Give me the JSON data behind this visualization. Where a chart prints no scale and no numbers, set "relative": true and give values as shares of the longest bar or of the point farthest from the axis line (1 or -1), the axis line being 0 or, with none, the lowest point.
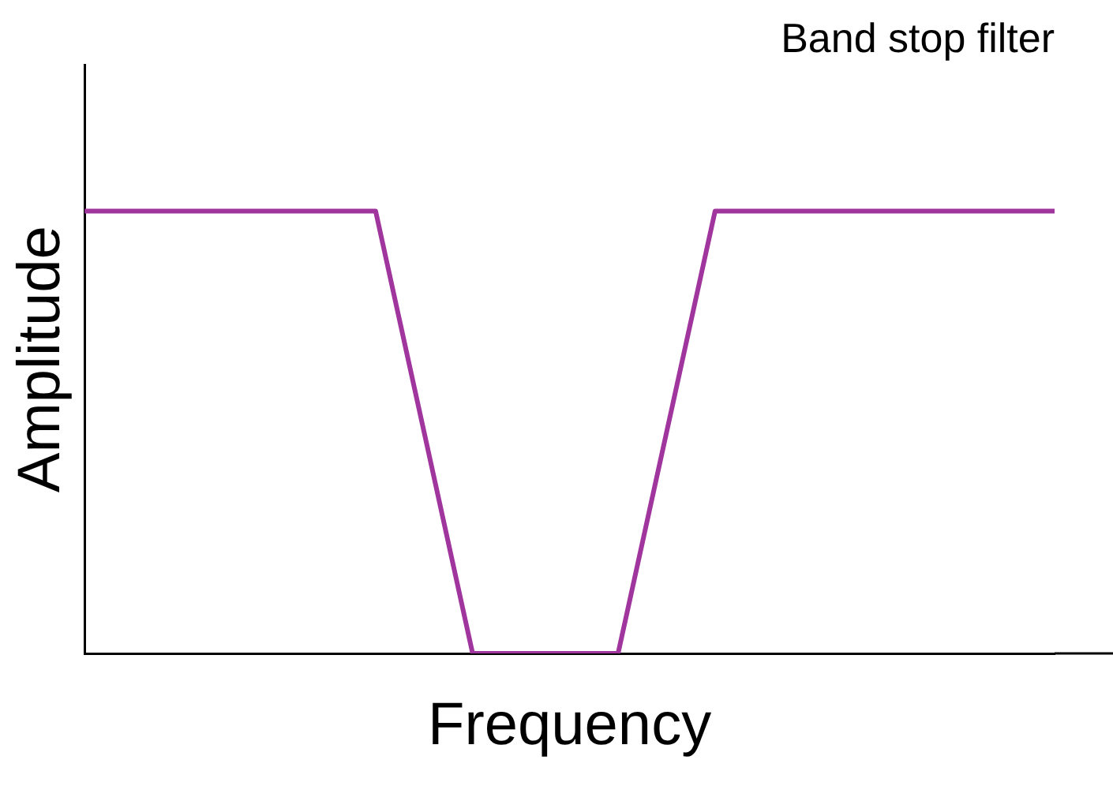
{
  "chart_data": {
    "type": "line",
    "title": "Band stop filter",
    "xlabel": "Frequency",
    "ylabel": "Amplitude",
    "relative": true,
    "categories": [
      null,
      null,
      null,
      null,
      null,
      null,
      null,
      null,
      null,
      null,
      null,
      null,
      null,
      null,
      null,
      null,
      null,
      null,
      null,
      null,
      null
    ],
    "series": [
      {
        "color": "#a0359e",
        "values": [
          1,
          1,
          1,
          1,
          1,
          1,
          1,
          0.5,
          0,
          0,
          0,
          0,
          0.5,
          1,
          1,
          1,
          1,
          1,
          1,
          1,
          1
        ]
      }
    ],
    "grid": false,
    "legend": false,
    "marker": "none"
  }
}
